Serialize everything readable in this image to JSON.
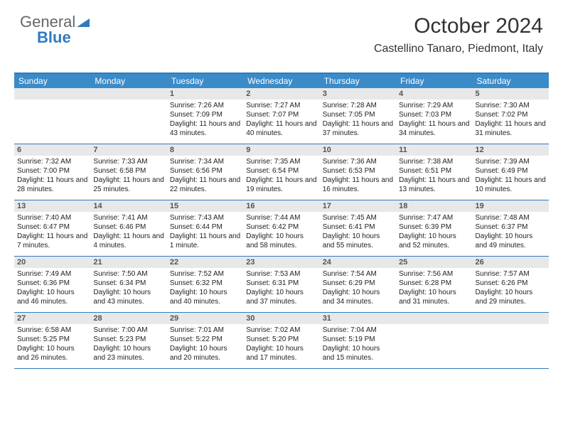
{
  "logo": {
    "text1": "General",
    "text2": "Blue"
  },
  "header": {
    "month_title": "October 2024",
    "location": "Castellino Tanaro, Piedmont, Italy"
  },
  "colors": {
    "header_bar": "#3b8bc9",
    "rule": "#2f7bbf",
    "daynum_bg": "#e8e8e8",
    "background": "#ffffff",
    "text_dark": "#333333"
  },
  "weekdays": [
    "Sunday",
    "Monday",
    "Tuesday",
    "Wednesday",
    "Thursday",
    "Friday",
    "Saturday"
  ],
  "weeks": [
    [
      {
        "n": "",
        "lines": []
      },
      {
        "n": "",
        "lines": []
      },
      {
        "n": "1",
        "lines": [
          "Sunrise: 7:26 AM",
          "Sunset: 7:09 PM",
          "Daylight: 11 hours and 43 minutes."
        ]
      },
      {
        "n": "2",
        "lines": [
          "Sunrise: 7:27 AM",
          "Sunset: 7:07 PM",
          "Daylight: 11 hours and 40 minutes."
        ]
      },
      {
        "n": "3",
        "lines": [
          "Sunrise: 7:28 AM",
          "Sunset: 7:05 PM",
          "Daylight: 11 hours and 37 minutes."
        ]
      },
      {
        "n": "4",
        "lines": [
          "Sunrise: 7:29 AM",
          "Sunset: 7:03 PM",
          "Daylight: 11 hours and 34 minutes."
        ]
      },
      {
        "n": "5",
        "lines": [
          "Sunrise: 7:30 AM",
          "Sunset: 7:02 PM",
          "Daylight: 11 hours and 31 minutes."
        ]
      }
    ],
    [
      {
        "n": "6",
        "lines": [
          "Sunrise: 7:32 AM",
          "Sunset: 7:00 PM",
          "Daylight: 11 hours and 28 minutes."
        ]
      },
      {
        "n": "7",
        "lines": [
          "Sunrise: 7:33 AM",
          "Sunset: 6:58 PM",
          "Daylight: 11 hours and 25 minutes."
        ]
      },
      {
        "n": "8",
        "lines": [
          "Sunrise: 7:34 AM",
          "Sunset: 6:56 PM",
          "Daylight: 11 hours and 22 minutes."
        ]
      },
      {
        "n": "9",
        "lines": [
          "Sunrise: 7:35 AM",
          "Sunset: 6:54 PM",
          "Daylight: 11 hours and 19 minutes."
        ]
      },
      {
        "n": "10",
        "lines": [
          "Sunrise: 7:36 AM",
          "Sunset: 6:53 PM",
          "Daylight: 11 hours and 16 minutes."
        ]
      },
      {
        "n": "11",
        "lines": [
          "Sunrise: 7:38 AM",
          "Sunset: 6:51 PM",
          "Daylight: 11 hours and 13 minutes."
        ]
      },
      {
        "n": "12",
        "lines": [
          "Sunrise: 7:39 AM",
          "Sunset: 6:49 PM",
          "Daylight: 11 hours and 10 minutes."
        ]
      }
    ],
    [
      {
        "n": "13",
        "lines": [
          "Sunrise: 7:40 AM",
          "Sunset: 6:47 PM",
          "Daylight: 11 hours and 7 minutes."
        ]
      },
      {
        "n": "14",
        "lines": [
          "Sunrise: 7:41 AM",
          "Sunset: 6:46 PM",
          "Daylight: 11 hours and 4 minutes."
        ]
      },
      {
        "n": "15",
        "lines": [
          "Sunrise: 7:43 AM",
          "Sunset: 6:44 PM",
          "Daylight: 11 hours and 1 minute."
        ]
      },
      {
        "n": "16",
        "lines": [
          "Sunrise: 7:44 AM",
          "Sunset: 6:42 PM",
          "Daylight: 10 hours and 58 minutes."
        ]
      },
      {
        "n": "17",
        "lines": [
          "Sunrise: 7:45 AM",
          "Sunset: 6:41 PM",
          "Daylight: 10 hours and 55 minutes."
        ]
      },
      {
        "n": "18",
        "lines": [
          "Sunrise: 7:47 AM",
          "Sunset: 6:39 PM",
          "Daylight: 10 hours and 52 minutes."
        ]
      },
      {
        "n": "19",
        "lines": [
          "Sunrise: 7:48 AM",
          "Sunset: 6:37 PM",
          "Daylight: 10 hours and 49 minutes."
        ]
      }
    ],
    [
      {
        "n": "20",
        "lines": [
          "Sunrise: 7:49 AM",
          "Sunset: 6:36 PM",
          "Daylight: 10 hours and 46 minutes."
        ]
      },
      {
        "n": "21",
        "lines": [
          "Sunrise: 7:50 AM",
          "Sunset: 6:34 PM",
          "Daylight: 10 hours and 43 minutes."
        ]
      },
      {
        "n": "22",
        "lines": [
          "Sunrise: 7:52 AM",
          "Sunset: 6:32 PM",
          "Daylight: 10 hours and 40 minutes."
        ]
      },
      {
        "n": "23",
        "lines": [
          "Sunrise: 7:53 AM",
          "Sunset: 6:31 PM",
          "Daylight: 10 hours and 37 minutes."
        ]
      },
      {
        "n": "24",
        "lines": [
          "Sunrise: 7:54 AM",
          "Sunset: 6:29 PM",
          "Daylight: 10 hours and 34 minutes."
        ]
      },
      {
        "n": "25",
        "lines": [
          "Sunrise: 7:56 AM",
          "Sunset: 6:28 PM",
          "Daylight: 10 hours and 31 minutes."
        ]
      },
      {
        "n": "26",
        "lines": [
          "Sunrise: 7:57 AM",
          "Sunset: 6:26 PM",
          "Daylight: 10 hours and 29 minutes."
        ]
      }
    ],
    [
      {
        "n": "27",
        "lines": [
          "Sunrise: 6:58 AM",
          "Sunset: 5:25 PM",
          "Daylight: 10 hours and 26 minutes."
        ]
      },
      {
        "n": "28",
        "lines": [
          "Sunrise: 7:00 AM",
          "Sunset: 5:23 PM",
          "Daylight: 10 hours and 23 minutes."
        ]
      },
      {
        "n": "29",
        "lines": [
          "Sunrise: 7:01 AM",
          "Sunset: 5:22 PM",
          "Daylight: 10 hours and 20 minutes."
        ]
      },
      {
        "n": "30",
        "lines": [
          "Sunrise: 7:02 AM",
          "Sunset: 5:20 PM",
          "Daylight: 10 hours and 17 minutes."
        ]
      },
      {
        "n": "31",
        "lines": [
          "Sunrise: 7:04 AM",
          "Sunset: 5:19 PM",
          "Daylight: 10 hours and 15 minutes."
        ]
      },
      {
        "n": "",
        "lines": []
      },
      {
        "n": "",
        "lines": []
      }
    ]
  ]
}
